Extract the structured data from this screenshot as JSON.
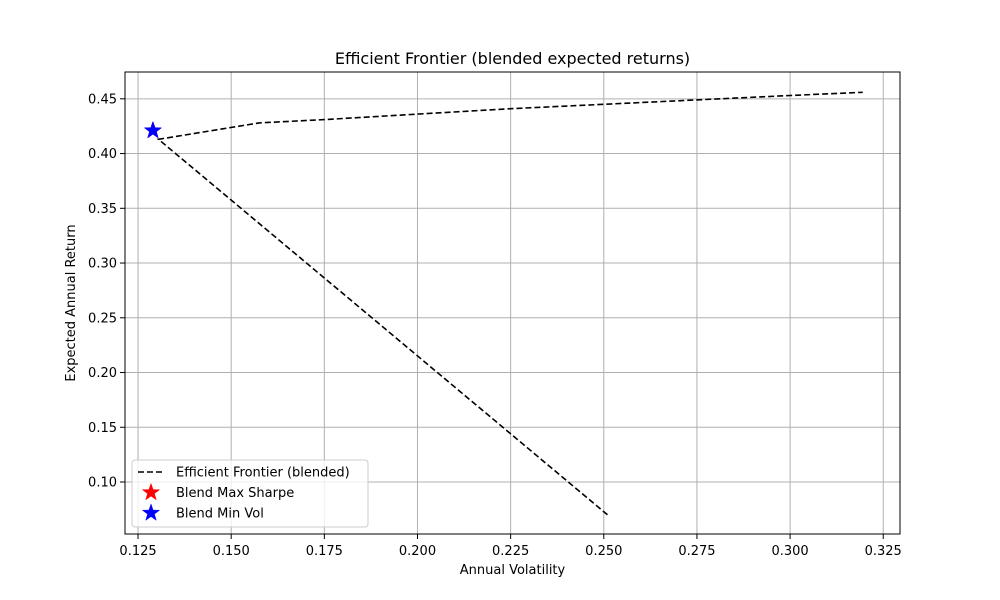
{
  "chart_data": {
    "type": "line",
    "title": "Efficient Frontier (blended expected returns)",
    "xlabel": "Annual Volatility",
    "ylabel": "Expected Annual Return",
    "xlim": [
      0.1215,
      0.3295
    ],
    "ylim": [
      0.0525,
      0.4745
    ],
    "xticks": [
      "0.125",
      "0.150",
      "0.175",
      "0.200",
      "0.225",
      "0.250",
      "0.275",
      "0.300",
      "0.325"
    ],
    "yticks": [
      "0.10",
      "0.15",
      "0.20",
      "0.25",
      "0.30",
      "0.35",
      "0.40",
      "0.45"
    ],
    "grid": true,
    "legend_position": "bottom-left",
    "series": [
      {
        "name": "Efficient Frontier (blended)",
        "style": "dashed",
        "color": "#000000",
        "x": [
          0.251,
          0.1305,
          0.1575,
          0.175,
          0.2,
          0.225,
          0.25,
          0.275,
          0.3,
          0.3195
        ],
        "y": [
          0.07,
          0.413,
          0.428,
          0.431,
          0.436,
          0.441,
          0.445,
          0.449,
          0.453,
          0.456
        ]
      }
    ],
    "markers": [
      {
        "name": "Blend Max Sharpe",
        "shape": "star",
        "color": "#ff0000",
        "x": 0.129,
        "y": 0.421
      },
      {
        "name": "Blend Min Vol",
        "shape": "star",
        "color": "#0000ff",
        "x": 0.129,
        "y": 0.421
      }
    ]
  }
}
